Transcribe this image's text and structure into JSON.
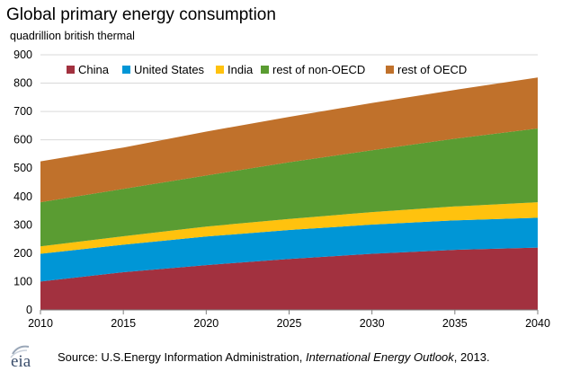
{
  "chart_data": {
    "type": "area",
    "stacked": true,
    "title": "Global primary energy consumption",
    "subtitle": "quadrillion british thermal",
    "xlabel": "",
    "ylabel": "",
    "x": [
      2010,
      2015,
      2020,
      2025,
      2030,
      2035,
      2040
    ],
    "xlim": [
      2010,
      2040
    ],
    "ylim": [
      0,
      900
    ],
    "yticks": [
      0,
      100,
      200,
      300,
      400,
      500,
      600,
      700,
      800,
      900
    ],
    "xticks": [
      2010,
      2015,
      2020,
      2025,
      2030,
      2035,
      2040
    ],
    "grid": true,
    "legend_position": "top",
    "series": [
      {
        "name": "China",
        "color": "#a2313f",
        "values": [
          100,
          133,
          158,
          180,
          198,
          212,
          220
        ]
      },
      {
        "name": "United States",
        "color": "#0096d6",
        "values": [
          98,
          97,
          101,
          102,
          103,
          104,
          105
        ]
      },
      {
        "name": "India",
        "color": "#ffc20e",
        "values": [
          26,
          30,
          35,
          39,
          44,
          49,
          55
        ]
      },
      {
        "name": "rest of non-OECD",
        "color": "#5a9c32",
        "values": [
          156,
          167,
          180,
          200,
          218,
          239,
          260
        ]
      },
      {
        "name": "rest of OECD",
        "color": "#c0712b",
        "values": [
          144,
          146,
          155,
          160,
          167,
          172,
          180
        ]
      }
    ]
  },
  "footer": {
    "logo_text": "eia",
    "source_prefix": "Source:  U.S.Energy Information  Administration, ",
    "source_publication": "International Energy Outlook",
    "source_suffix": ", 2013."
  }
}
